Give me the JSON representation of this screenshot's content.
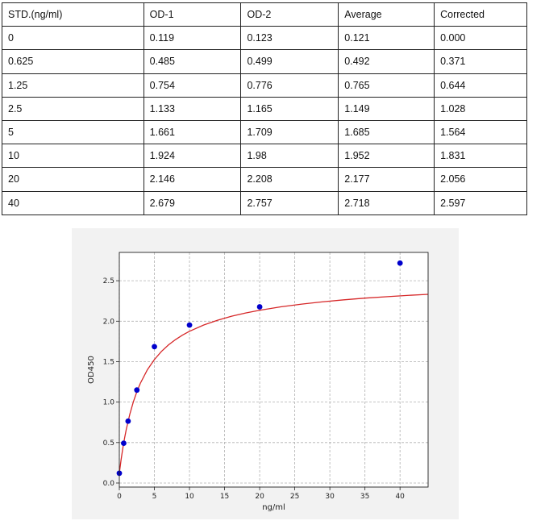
{
  "table": {
    "headers": [
      "STD.(ng/ml)",
      "OD-1",
      "OD-2",
      "Average",
      "Corrected"
    ],
    "rows": [
      [
        "0",
        "0.119",
        "0.123",
        "0.121",
        "0.000"
      ],
      [
        "0.625",
        "0.485",
        "0.499",
        "0.492",
        "0.371"
      ],
      [
        "1.25",
        "0.754",
        "0.776",
        "0.765",
        "0.644"
      ],
      [
        "2.5",
        "1.133",
        "1.165",
        "1.149",
        "1.028"
      ],
      [
        "5",
        "1.661",
        "1.709",
        "1.685",
        "1.564"
      ],
      [
        "10",
        "1.924",
        "1.98",
        "1.952",
        "1.831"
      ],
      [
        "20",
        "2.146",
        "2.208",
        "2.177",
        "2.056"
      ],
      [
        "40",
        "2.679",
        "2.757",
        "2.718",
        "2.597"
      ]
    ]
  },
  "chart_data": {
    "type": "scatter",
    "title": "",
    "xlabel": "ng/ml",
    "ylabel": "OD450",
    "xlim": [
      0,
      44
    ],
    "ylim": [
      -0.05,
      2.85
    ],
    "xticks": [
      0,
      5,
      10,
      15,
      20,
      25,
      30,
      35,
      40
    ],
    "yticks": [
      0.0,
      0.5,
      1.0,
      1.5,
      2.0,
      2.5
    ],
    "grid": true,
    "points": {
      "x": [
        0,
        0.625,
        1.25,
        2.5,
        5,
        10,
        20,
        40
      ],
      "y": [
        0.121,
        0.492,
        0.765,
        1.149,
        1.685,
        1.952,
        2.177,
        2.718
      ],
      "color": "#0000cc"
    },
    "fit": {
      "x": [
        0,
        0.25,
        0.5,
        0.75,
        1,
        1.5,
        2,
        2.5,
        3,
        4,
        5,
        6,
        7,
        8,
        9,
        10,
        12,
        14,
        16,
        18,
        20,
        23,
        26,
        29,
        32,
        35,
        38,
        41,
        44
      ],
      "y": [
        0.12,
        0.287,
        0.431,
        0.556,
        0.666,
        0.852,
        1.003,
        1.128,
        1.233,
        1.4,
        1.526,
        1.626,
        1.706,
        1.772,
        1.828,
        1.875,
        1.952,
        2.012,
        2.061,
        2.101,
        2.135,
        2.177,
        2.211,
        2.24,
        2.264,
        2.285,
        2.302,
        2.318,
        2.332
      ],
      "color": "#d62728"
    }
  }
}
